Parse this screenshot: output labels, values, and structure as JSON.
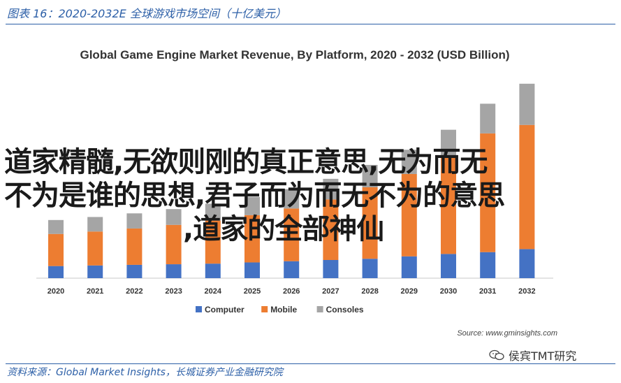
{
  "figure_caption": "图表 16：2020-2032E 全球游戏市场空间（十亿美元）",
  "source_caption": "资料来源：Global Market Insights，长城证券产业金融研究院",
  "overlay_text": {
    "line1": "道家精髓,无欲则刚的真正意思,无为而无",
    "line2": "不为是谁的思想,君子而为而无不为的意思",
    "line3": ",道家的全部神仙"
  },
  "watermark": "侯宾TMT研究",
  "colors": {
    "Computer": "#4472c4",
    "Mobile": "#ed7d31",
    "Consoles": "#a5a5a5",
    "accent": "#2c5fa7"
  },
  "chart_data": {
    "type": "bar",
    "stacked": true,
    "title": "Global Game Engine Market Revenue, By Platform, 2020 - 2032 (USD Billion)",
    "source": "Source: www.gminsights.com",
    "categories": [
      "2020",
      "2021",
      "2022",
      "2023",
      "2024",
      "2025",
      "2026",
      "2027",
      "2028",
      "2029",
      "2030",
      "2031",
      "2032"
    ],
    "series": [
      {
        "name": "Computer",
        "values": [
          2.0,
          2.1,
          2.2,
          2.3,
          2.4,
          2.6,
          2.8,
          3.0,
          3.2,
          3.6,
          4.0,
          4.3,
          4.8
        ]
      },
      {
        "name": "Mobile",
        "values": [
          5.3,
          5.6,
          6.0,
          6.5,
          7.1,
          7.8,
          8.7,
          10.0,
          11.8,
          13.6,
          16.2,
          19.6,
          20.5
        ]
      },
      {
        "name": "Consoles",
        "values": [
          2.3,
          2.4,
          2.5,
          2.6,
          2.8,
          3.0,
          3.2,
          3.4,
          3.7,
          4.0,
          4.3,
          4.9,
          6.8
        ]
      }
    ],
    "legend_position": "bottom",
    "ylim": [
      0,
      33
    ],
    "grid": false
  }
}
